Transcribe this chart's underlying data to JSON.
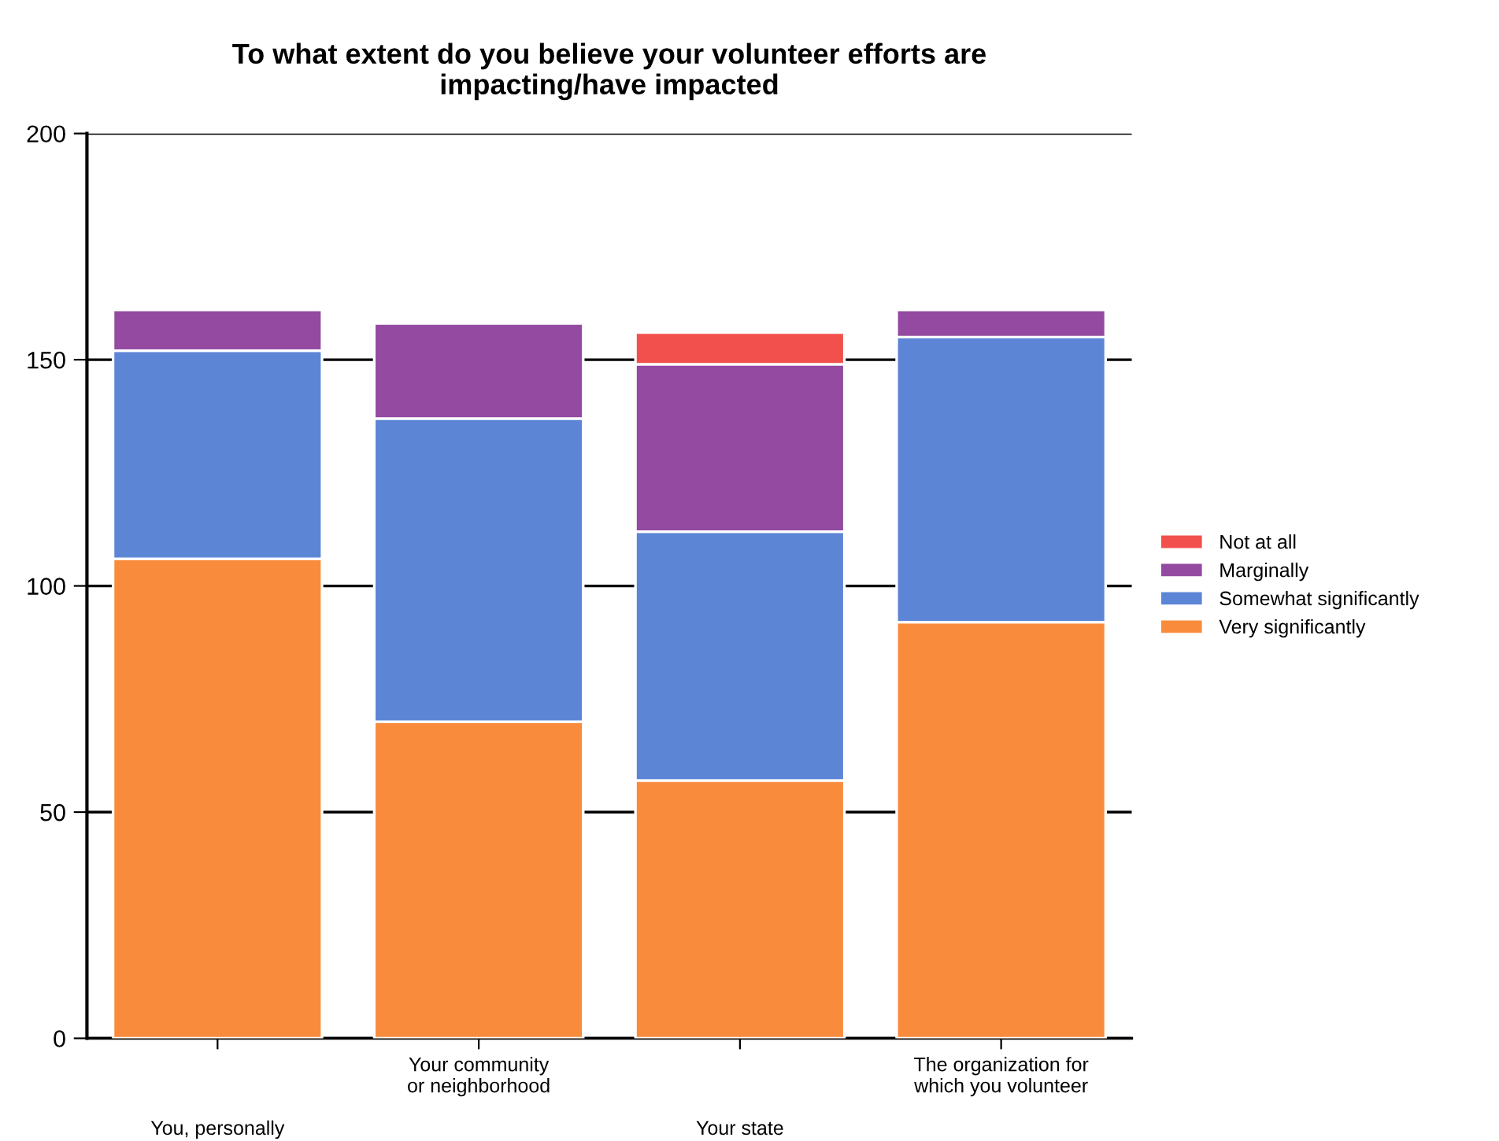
{
  "chart_data": {
    "type": "bar",
    "title": "To what extent do you believe your volunteer efforts are\nimpacting/have impacted",
    "categories": [
      "You, personally",
      "Your community\nor neighborhood",
      "Your state",
      "The organization for\nwhich you volunteer"
    ],
    "stacked": true,
    "series": [
      {
        "name": "Very significantly",
        "color": "#f98c3c",
        "values": [
          106,
          70,
          57,
          92
        ]
      },
      {
        "name": "Somewhat significantly",
        "color": "#5d85d6",
        "values": [
          46,
          67,
          55,
          63
        ]
      },
      {
        "name": "Marginally",
        "color": "#934aa0",
        "values": [
          9,
          21,
          37,
          6
        ]
      },
      {
        "name": "Not at all",
        "color": "#f2504c",
        "values": [
          null,
          null,
          7,
          null
        ]
      }
    ],
    "ylim": [
      0,
      200
    ],
    "yticks": [
      0,
      50,
      100,
      150,
      200
    ],
    "grid": "y",
    "legend": "right"
  }
}
